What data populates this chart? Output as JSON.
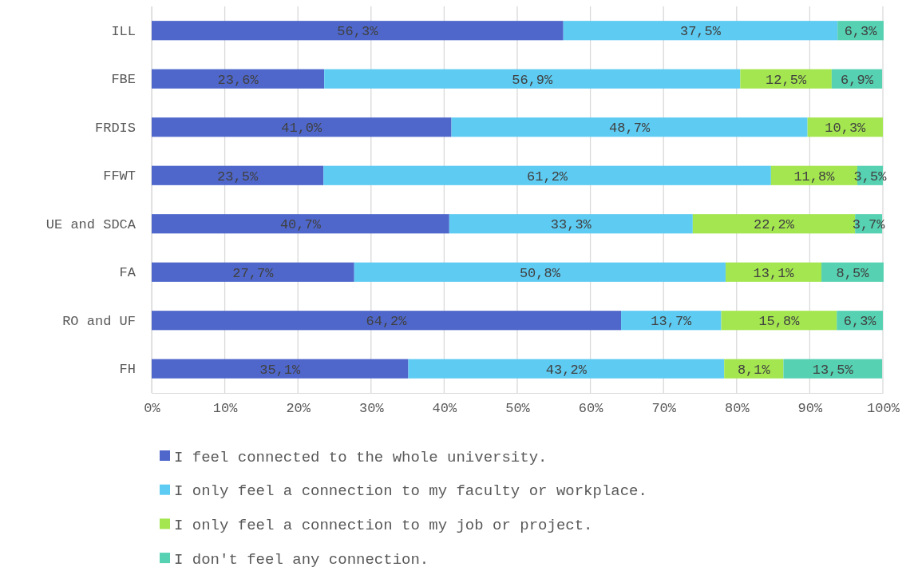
{
  "chart_data": {
    "type": "bar",
    "orientation": "horizontal",
    "stacked": true,
    "categories": [
      "ILL",
      "FBE",
      "FRDIS",
      "FFWT",
      "UE and SDCA",
      "FA",
      "RO and UF",
      "FH"
    ],
    "series": [
      {
        "name": "I feel connected to the whole university.",
        "color": "#4f67cb",
        "values": [
          56.3,
          23.6,
          41.0,
          23.5,
          40.7,
          27.7,
          64.2,
          35.1
        ],
        "value_labels": [
          "56,3%",
          "23,6%",
          "41,0%",
          "23,5%",
          "40,7%",
          "27,7%",
          "64,2%",
          "35,1%"
        ]
      },
      {
        "name": "I only feel a connection to my faculty or workplace.",
        "color": "#5ecbf2",
        "values": [
          37.5,
          56.9,
          48.7,
          61.2,
          33.3,
          50.8,
          13.7,
          43.2
        ],
        "value_labels": [
          "37,5%",
          "56,9%",
          "48,7%",
          "61,2%",
          "33,3%",
          "50,8%",
          "13,7%",
          "43,2%"
        ]
      },
      {
        "name": "I only feel a connection to my job or project.",
        "color": "#a4e650",
        "values": [
          null,
          12.5,
          10.3,
          11.8,
          22.2,
          13.1,
          15.8,
          8.1
        ],
        "value_labels": [
          null,
          "12,5%",
          "10,3%",
          "11,8%",
          "22,2%",
          "13,1%",
          "15,8%",
          "8,1%"
        ]
      },
      {
        "name": "I don't feel any connection.",
        "color": "#56d1b2",
        "values": [
          6.3,
          6.9,
          null,
          3.5,
          3.7,
          8.5,
          6.3,
          13.5
        ],
        "value_labels": [
          "6,3%",
          "6,9%",
          null,
          "3,5%",
          "3,7%",
          "8,5%",
          "6,3%",
          "13,5%"
        ]
      }
    ],
    "xlim": [
      0,
      100
    ],
    "xticks": [
      {
        "value": 0,
        "label": "0%"
      },
      {
        "value": 10,
        "label": "10%"
      },
      {
        "value": 20,
        "label": "20%"
      },
      {
        "value": 30,
        "label": "30%"
      },
      {
        "value": 40,
        "label": "40%"
      },
      {
        "value": 50,
        "label": "50%"
      },
      {
        "value": 60,
        "label": "60%"
      },
      {
        "value": 70,
        "label": "70%"
      },
      {
        "value": 80,
        "label": "80%"
      },
      {
        "value": 90,
        "label": "90%"
      },
      {
        "value": 100,
        "label": "100%"
      }
    ],
    "grid": "x",
    "legend": "bottom"
  }
}
